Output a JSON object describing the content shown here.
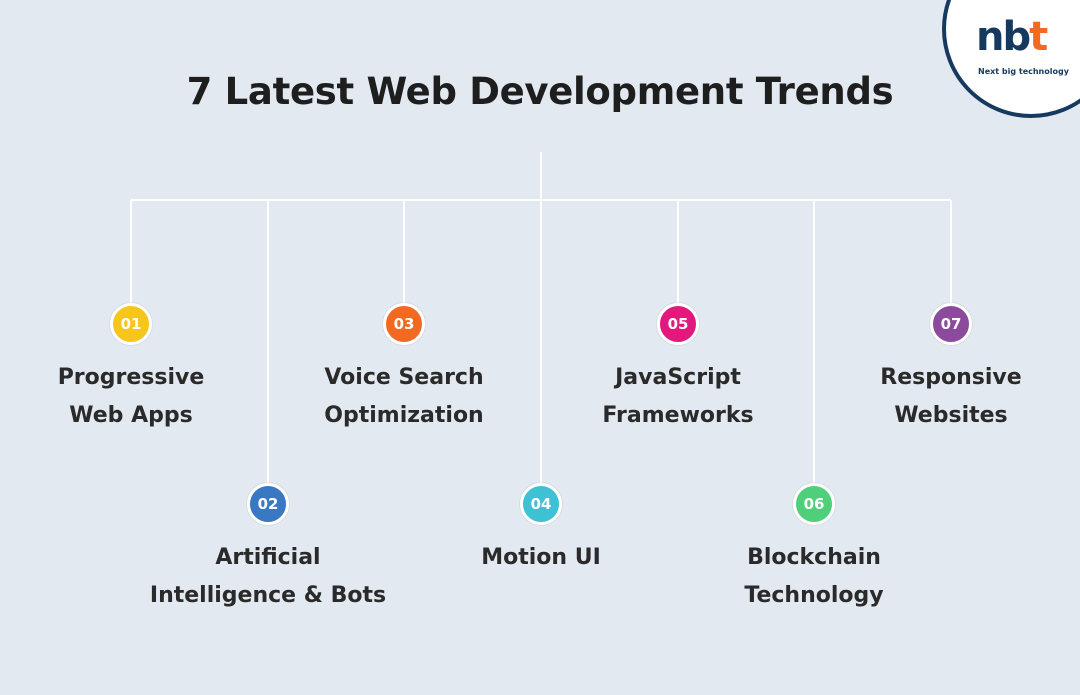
{
  "title": "7 Latest Web Development Trends",
  "logo": {
    "mark_a": "n",
    "mark_b": "b",
    "mark_c": "t",
    "tagline": "Next big technology"
  },
  "trends": [
    {
      "num": "01",
      "line1": "Progressive",
      "line2": "Web Apps",
      "color": "#f7c51b"
    },
    {
      "num": "02",
      "line1": "Artificial",
      "line2": "Intelligence & Bots",
      "color": "#3b78c4"
    },
    {
      "num": "03",
      "line1": "Voice Search",
      "line2": "Optimization",
      "color": "#f26a21"
    },
    {
      "num": "04",
      "line1": "Motion UI",
      "line2": "",
      "color": "#3fc1d4"
    },
    {
      "num": "05",
      "line1": "JavaScript",
      "line2": "Frameworks",
      "color": "#e3187d"
    },
    {
      "num": "06",
      "line1": "Blockchain",
      "line2": "Technology",
      "color": "#4fcf7a"
    },
    {
      "num": "07",
      "line1": "Responsive",
      "line2": "Websites",
      "color": "#8b4a9c"
    }
  ]
}
